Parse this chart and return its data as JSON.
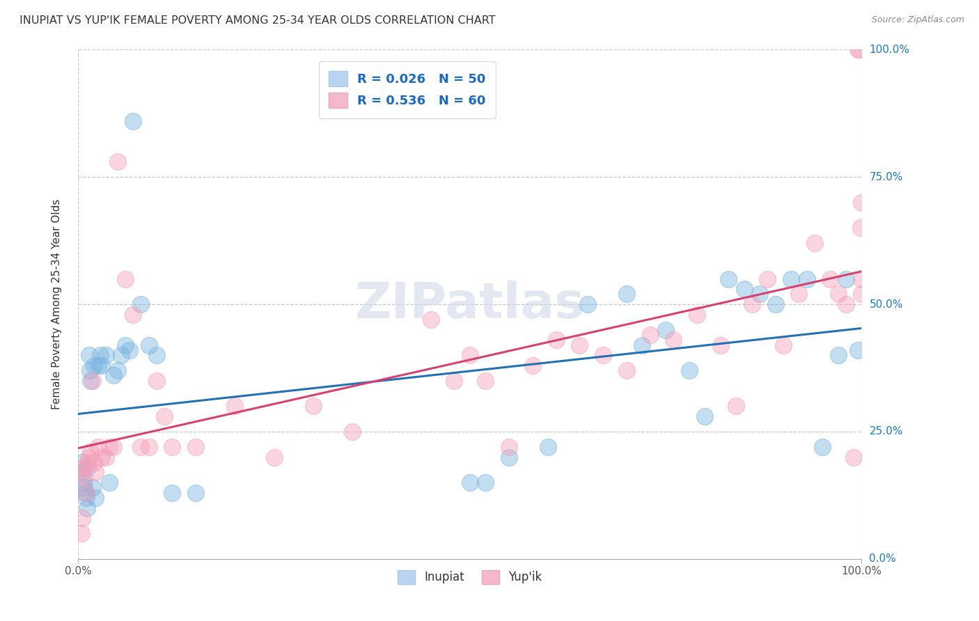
{
  "title": "INUPIAT VS YUP'IK FEMALE POVERTY AMONG 25-34 YEAR OLDS CORRELATION CHART",
  "source": "Source: ZipAtlas.com",
  "ylabel": "Female Poverty Among 25-34 Year Olds",
  "ytick_labels": [
    "0.0%",
    "25.0%",
    "50.0%",
    "75.0%",
    "100.0%"
  ],
  "ytick_values": [
    0.0,
    0.25,
    0.5,
    0.75,
    1.0
  ],
  "inupiat_color": "#7ab4e0",
  "yupik_color": "#f4a0b8",
  "inupiat_line_color": "#2171b5",
  "yupik_line_color": "#d94070",
  "background_color": "#ffffff",
  "grid_color": "#c8c8c8",
  "watermark": "ZIPatlas",
  "inupiat_x": [
    0.005,
    0.005,
    0.007,
    0.008,
    0.009,
    0.01,
    0.011,
    0.012,
    0.014,
    0.015,
    0.016,
    0.018,
    0.02,
    0.022,
    0.025,
    0.028,
    0.03,
    0.035,
    0.04,
    0.045,
    0.05,
    0.055,
    0.06,
    0.065,
    0.07,
    0.08,
    0.09,
    0.1,
    0.12,
    0.15,
    0.5,
    0.52,
    0.55,
    0.6,
    0.65,
    0.7,
    0.72,
    0.75,
    0.78,
    0.8,
    0.83,
    0.85,
    0.87,
    0.89,
    0.91,
    0.93,
    0.95,
    0.97,
    0.98,
    0.995
  ],
  "inupiat_y": [
    0.19,
    0.17,
    0.15,
    0.14,
    0.13,
    0.12,
    0.1,
    0.18,
    0.4,
    0.37,
    0.35,
    0.14,
    0.38,
    0.12,
    0.38,
    0.4,
    0.38,
    0.4,
    0.15,
    0.36,
    0.37,
    0.4,
    0.42,
    0.41,
    0.86,
    0.5,
    0.42,
    0.4,
    0.13,
    0.13,
    0.15,
    0.15,
    0.2,
    0.22,
    0.5,
    0.52,
    0.42,
    0.45,
    0.37,
    0.28,
    0.55,
    0.53,
    0.52,
    0.5,
    0.55,
    0.55,
    0.22,
    0.4,
    0.55,
    0.41
  ],
  "yupik_x": [
    0.003,
    0.004,
    0.005,
    0.007,
    0.008,
    0.01,
    0.012,
    0.014,
    0.016,
    0.018,
    0.02,
    0.022,
    0.025,
    0.03,
    0.035,
    0.04,
    0.045,
    0.05,
    0.06,
    0.07,
    0.08,
    0.09,
    0.1,
    0.11,
    0.12,
    0.15,
    0.2,
    0.25,
    0.3,
    0.35,
    0.45,
    0.48,
    0.5,
    0.52,
    0.55,
    0.58,
    0.61,
    0.64,
    0.67,
    0.7,
    0.73,
    0.76,
    0.79,
    0.82,
    0.84,
    0.86,
    0.88,
    0.9,
    0.92,
    0.94,
    0.96,
    0.97,
    0.98,
    0.99,
    0.995,
    0.997,
    0.999,
    1.0,
    1.0,
    1.0
  ],
  "yupik_y": [
    0.17,
    0.05,
    0.08,
    0.18,
    0.16,
    0.13,
    0.19,
    0.2,
    0.21,
    0.35,
    0.19,
    0.17,
    0.22,
    0.2,
    0.2,
    0.22,
    0.22,
    0.78,
    0.55,
    0.48,
    0.22,
    0.22,
    0.35,
    0.28,
    0.22,
    0.22,
    0.3,
    0.2,
    0.3,
    0.25,
    0.47,
    0.35,
    0.4,
    0.35,
    0.22,
    0.38,
    0.43,
    0.42,
    0.4,
    0.37,
    0.44,
    0.43,
    0.48,
    0.42,
    0.3,
    0.5,
    0.55,
    0.42,
    0.52,
    0.62,
    0.55,
    0.52,
    0.5,
    0.2,
    1.0,
    1.0,
    0.65,
    0.7,
    0.55,
    0.52
  ]
}
